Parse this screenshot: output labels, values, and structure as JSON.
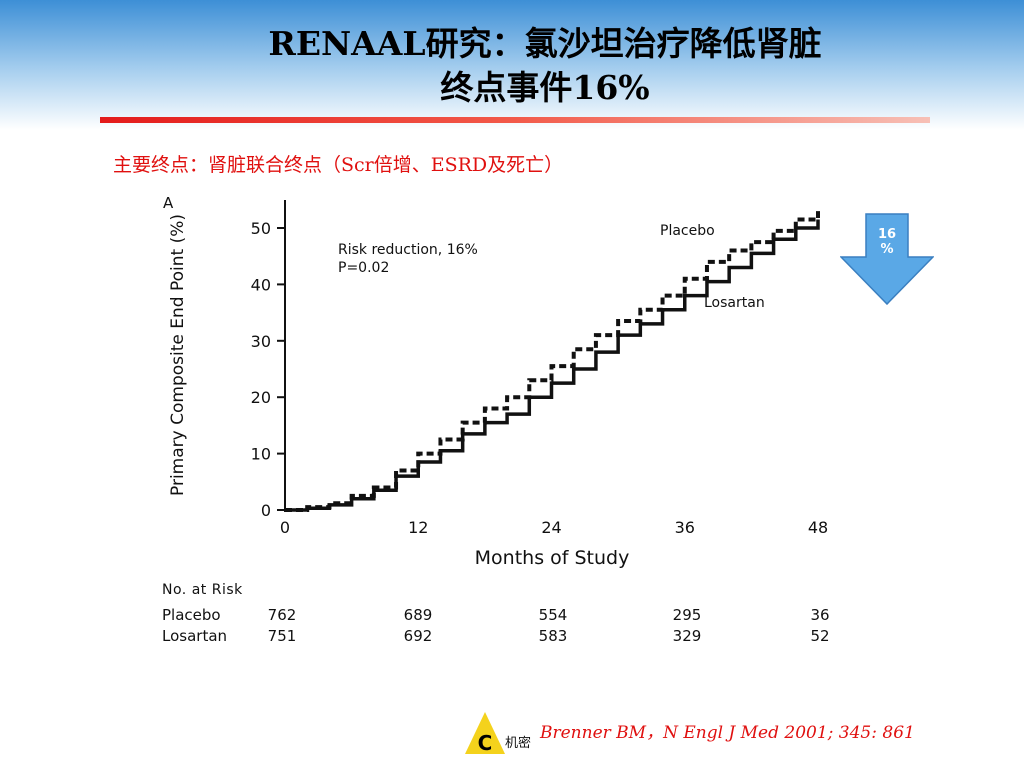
{
  "slide": {
    "title_line1": "RENAAL研究：氯沙坦治疗降低肾脏",
    "title_line2": "终点事件16%",
    "subtitle": "主要终点：肾脏联合终点（Scr倍增、ESRD及死亡）",
    "citation": "Brenner BM，N Engl J Med 2001; 345: 861",
    "confidential_label": "机密",
    "logo_letter": "C",
    "badge_text_line1": "16",
    "badge_text_line2": "%",
    "colors": {
      "title_gradient_top": "#3d8fd6",
      "accent_red": "#e0100f",
      "badge_blue": "#5aa8e6",
      "logo_yellow": "#f4d21c"
    }
  },
  "chart_data": {
    "type": "line",
    "panel_label": "A",
    "ylabel": "Primary Composite End Point (%)",
    "xlabel": "Months of Study",
    "xlim": [
      0,
      48
    ],
    "ylim": [
      0,
      50
    ],
    "xticks": [
      0,
      12,
      24,
      36,
      48
    ],
    "yticks": [
      0,
      10,
      20,
      30,
      40,
      50
    ],
    "annotation_line1": "Risk reduction, 16%",
    "annotation_line2": "P=0.02",
    "series": [
      {
        "name": "Placebo",
        "style": "dashed",
        "x": [
          0,
          2,
          4,
          6,
          8,
          10,
          12,
          14,
          16,
          18,
          20,
          22,
          24,
          26,
          28,
          30,
          32,
          34,
          36,
          38,
          40,
          42,
          44,
          46,
          48
        ],
        "y": [
          0,
          0.5,
          1.2,
          2.5,
          4,
          7,
          10,
          12.5,
          15.5,
          18,
          20,
          23,
          25.5,
          28.5,
          31,
          33.5,
          35.5,
          38,
          41,
          44,
          46,
          47.5,
          49.5,
          51.5,
          53
        ]
      },
      {
        "name": "Losartan",
        "style": "solid",
        "x": [
          0,
          2,
          4,
          6,
          8,
          10,
          12,
          14,
          16,
          18,
          20,
          22,
          24,
          26,
          28,
          30,
          32,
          34,
          36,
          38,
          40,
          42,
          44,
          46,
          48
        ],
        "y": [
          0,
          0.3,
          0.9,
          2,
          3.5,
          6,
          8.5,
          10.5,
          13.5,
          15.5,
          17,
          20,
          22.5,
          25,
          28,
          31,
          33,
          35.5,
          38,
          40.5,
          43,
          45.5,
          48,
          50,
          51.5
        ]
      }
    ],
    "at_risk": {
      "header": "No. at Risk",
      "months": [
        0,
        12,
        24,
        36,
        48
      ],
      "rows": [
        {
          "label": "Placebo",
          "values": [
            "762",
            "689",
            "554",
            "295",
            "36"
          ]
        },
        {
          "label": "Losartan",
          "values": [
            "751",
            "692",
            "583",
            "329",
            "52"
          ]
        }
      ]
    }
  }
}
